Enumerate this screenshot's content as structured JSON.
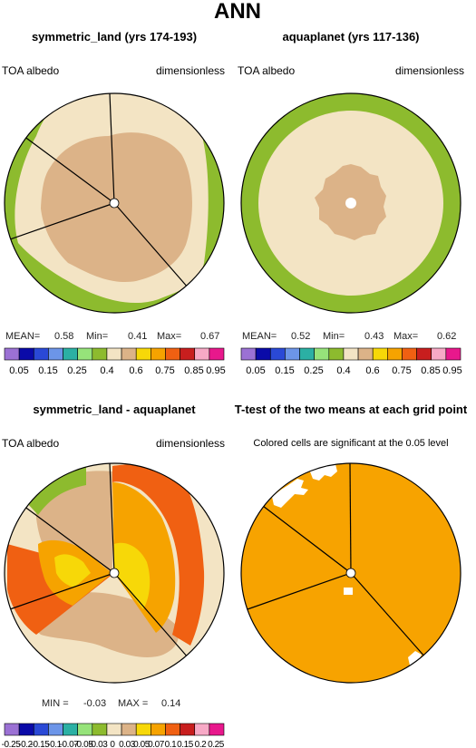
{
  "title": "ANN",
  "colors": {
    "albedo_levels": [
      "#9b71d4",
      "#0a0aa8",
      "#2a49d6",
      "#6c95e8",
      "#2bb0a4",
      "#96e37a",
      "#8dbb2e",
      "#f3e4c4",
      "#dcb388",
      "#f7d808",
      "#f6a300",
      "#f06012",
      "#c81e1e",
      "#f7a9c6",
      "#e8188c"
    ],
    "ttest": "#f7a300"
  },
  "panels": [
    {
      "id": "p1",
      "title": "symmetric_land (yrs 174-193)",
      "left_label": "TOA albedo",
      "right_label": "dimensionless",
      "stats": {
        "mean_label": "MEAN=",
        "mean": "0.58",
        "min_label": "Min=",
        "min": "0.41",
        "max_label": "Max=",
        "max": "0.67"
      },
      "colorbar_ticks": [
        "0.05",
        "0.15",
        "0.25",
        "0.4",
        "0.6",
        "0.75",
        "0.85",
        "0.95"
      ]
    },
    {
      "id": "p2",
      "title": "aquaplanet (yrs 117-136)",
      "left_label": "TOA albedo",
      "right_label": "dimensionless",
      "stats": {
        "mean_label": "MEAN=",
        "mean": "0.52",
        "min_label": "Min=",
        "min": "0.43",
        "max_label": "Max=",
        "max": "0.62"
      },
      "colorbar_ticks": [
        "0.05",
        "0.15",
        "0.25",
        "0.4",
        "0.6",
        "0.75",
        "0.85",
        "0.95"
      ]
    },
    {
      "id": "p3",
      "title": "symmetric_land - aquaplanet",
      "left_label": "TOA albedo",
      "right_label": "dimensionless",
      "stats": {
        "min_label": "MIN =",
        "min": "-0.03",
        "max_label": "MAX =",
        "max": "0.14"
      },
      "colorbar_ticks": [
        "-0.25",
        "-0.2",
        "-0.15",
        "-0.1",
        "-0.07",
        "-0.05",
        "-0.03",
        "0",
        "0.03",
        "0.05",
        "0.07",
        "0.1",
        "0.15",
        "0.2",
        "0.25"
      ]
    },
    {
      "id": "p4",
      "title": "T-test of the two means at each grid point",
      "subtitle": "Colored cells are significant at the 0.05 level"
    }
  ],
  "chart_data": [
    {
      "type": "heatmap",
      "projection": "polar",
      "title": "symmetric_land (yrs 174-193)",
      "variable": "TOA albedo",
      "units": "dimensionless",
      "mean": 0.58,
      "min": 0.41,
      "max": 0.67,
      "levels": [
        0.05,
        0.1,
        0.15,
        0.2,
        0.25,
        0.3,
        0.4,
        0.5,
        0.6,
        0.7,
        0.75,
        0.8,
        0.85,
        0.9,
        0.95
      ]
    },
    {
      "type": "heatmap",
      "projection": "polar",
      "title": "aquaplanet (yrs 117-136)",
      "variable": "TOA albedo",
      "units": "dimensionless",
      "mean": 0.52,
      "min": 0.43,
      "max": 0.62,
      "levels": [
        0.05,
        0.1,
        0.15,
        0.2,
        0.25,
        0.3,
        0.4,
        0.5,
        0.6,
        0.7,
        0.75,
        0.8,
        0.85,
        0.9,
        0.95
      ]
    },
    {
      "type": "heatmap",
      "projection": "polar",
      "title": "symmetric_land - aquaplanet",
      "variable": "TOA albedo",
      "units": "dimensionless",
      "min": -0.03,
      "max": 0.14,
      "levels": [
        -0.25,
        -0.2,
        -0.15,
        -0.1,
        -0.07,
        -0.05,
        -0.03,
        0,
        0.03,
        0.05,
        0.07,
        0.1,
        0.15,
        0.2,
        0.25
      ]
    },
    {
      "type": "heatmap",
      "projection": "polar",
      "title": "T-test of the two means at each grid point",
      "subtitle": "Colored cells are significant at the 0.05 level"
    }
  ]
}
